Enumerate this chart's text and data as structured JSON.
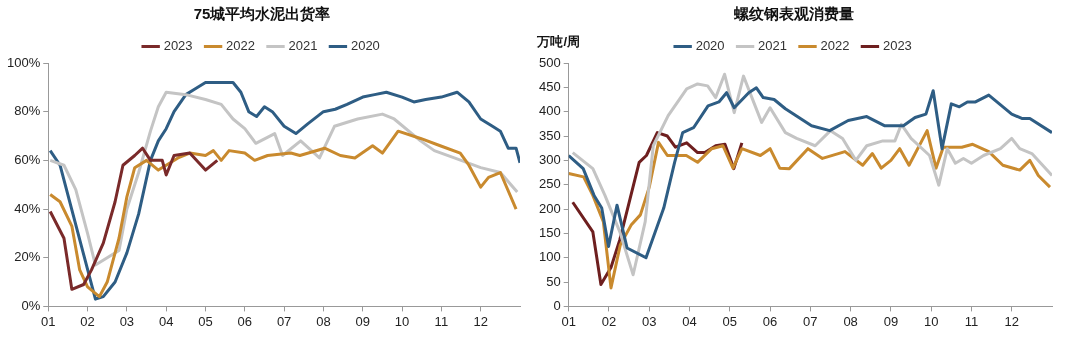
{
  "chart_data": [
    {
      "type": "line",
      "title": "75城平均水泥出货率",
      "legend": "top",
      "marker": "none",
      "xlim": [
        1,
        13
      ],
      "xticks": [
        {
          "value": 1,
          "label": "01"
        },
        {
          "value": 2,
          "label": "02"
        },
        {
          "value": 3,
          "label": "03"
        },
        {
          "value": 4,
          "label": "04"
        },
        {
          "value": 5,
          "label": "05"
        },
        {
          "value": 6,
          "label": "06"
        },
        {
          "value": 7,
          "label": "07"
        },
        {
          "value": 8,
          "label": "08"
        },
        {
          "value": 9,
          "label": "09"
        },
        {
          "value": 10,
          "label": "10"
        },
        {
          "value": 11,
          "label": "11"
        },
        {
          "value": 12,
          "label": "12"
        }
      ],
      "ylim": [
        0,
        100
      ],
      "yticks": [
        {
          "value": 0,
          "label": "0%"
        },
        {
          "value": 20,
          "label": "20%"
        },
        {
          "value": 40,
          "label": "40%"
        },
        {
          "value": 60,
          "label": "60%"
        },
        {
          "value": 80,
          "label": "80%"
        },
        {
          "value": 100,
          "label": "100%"
        }
      ],
      "series": [
        {
          "name": "2023",
          "color": "#7a2a2a",
          "x": [
            1.05,
            1.4,
            1.6,
            1.9,
            2.1,
            2.4,
            2.7,
            2.9,
            3.2,
            3.4,
            3.6,
            3.9,
            4.0,
            4.2,
            4.6,
            5.0,
            5.3
          ],
          "values": [
            39,
            28,
            7,
            9,
            15,
            26,
            43,
            58,
            62,
            65,
            60,
            60,
            54,
            62,
            63,
            56,
            60
          ]
        },
        {
          "name": "2022",
          "color": "#c98a2e",
          "x": [
            1.05,
            1.3,
            1.6,
            1.8,
            2.0,
            2.3,
            2.5,
            2.8,
            3.0,
            3.2,
            3.5,
            3.8,
            4.0,
            4.3,
            4.6,
            5.0,
            5.2,
            5.4,
            5.6,
            6.0,
            6.25,
            6.58,
            7.17,
            7.4,
            8.03,
            8.43,
            8.8,
            9.25,
            9.5,
            9.9,
            10.47,
            10.97,
            11.48,
            11.7,
            12.0,
            12.2,
            12.5,
            12.9
          ],
          "values": [
            46,
            43,
            33,
            15,
            8,
            4,
            10,
            28,
            45,
            57,
            60,
            56,
            58,
            61,
            63,
            62,
            64,
            60,
            64,
            63,
            60,
            62,
            63,
            62,
            65,
            62,
            61,
            66,
            63,
            72,
            69,
            66,
            63,
            58,
            49,
            53,
            55,
            40
          ]
        },
        {
          "name": "2021",
          "color": "#c4c4c4",
          "x": [
            1.05,
            1.4,
            1.7,
            2.0,
            2.2,
            2.5,
            2.8,
            3.0,
            3.3,
            3.6,
            3.8,
            4.0,
            4.5,
            5.0,
            5.4,
            5.7,
            6.0,
            6.28,
            6.76,
            6.96,
            7.42,
            7.9,
            8.28,
            8.87,
            9.5,
            9.8,
            10.47,
            10.82,
            11.33,
            12.0,
            12.5,
            12.93
          ],
          "values": [
            60,
            58,
            48,
            30,
            17,
            20,
            23,
            40,
            55,
            72,
            82,
            88,
            87,
            85,
            83,
            77,
            73,
            67,
            71,
            62,
            68,
            61,
            74,
            77,
            79,
            77,
            68,
            64,
            61,
            57,
            55,
            47
          ]
        },
        {
          "name": "2020",
          "color": "#2e5d84",
          "x": [
            1.05,
            1.3,
            2.2,
            2.4,
            2.7,
            3.0,
            3.3,
            3.6,
            3.8,
            4.0,
            4.2,
            4.5,
            4.7,
            5.0,
            5.5,
            5.7,
            5.9,
            6.1,
            6.3,
            6.5,
            6.7,
            7.0,
            7.3,
            7.6,
            8.0,
            8.3,
            8.6,
            9.0,
            9.3,
            9.6,
            10.0,
            10.3,
            10.6,
            11.0,
            11.4,
            11.7,
            12.0,
            12.3,
            12.5,
            12.7,
            12.9,
            13.0
          ],
          "values": [
            64,
            58,
            3,
            4,
            10,
            22,
            38,
            60,
            68,
            73,
            80,
            87,
            89,
            92,
            92,
            92,
            88,
            80,
            78,
            82,
            80,
            74,
            71,
            75,
            80,
            81,
            83,
            86,
            87,
            88,
            86,
            84,
            85,
            86,
            88,
            84,
            77,
            74,
            72,
            65,
            65,
            59
          ]
        }
      ]
    },
    {
      "type": "line",
      "title": "螺纹钢表观消费量",
      "ylabel": "万吨/周",
      "legend": "top",
      "marker": "none",
      "xlim": [
        1,
        13
      ],
      "xticks": [
        {
          "value": 1,
          "label": "01"
        },
        {
          "value": 2,
          "label": "02"
        },
        {
          "value": 3,
          "label": "03"
        },
        {
          "value": 4,
          "label": "04"
        },
        {
          "value": 5,
          "label": "05"
        },
        {
          "value": 6,
          "label": "06"
        },
        {
          "value": 7,
          "label": "07"
        },
        {
          "value": 8,
          "label": "08"
        },
        {
          "value": 9,
          "label": "09"
        },
        {
          "value": 10,
          "label": "10"
        },
        {
          "value": 11,
          "label": "11"
        },
        {
          "value": 12,
          "label": "12"
        }
      ],
      "ylim": [
        0,
        500
      ],
      "yticks": [
        0,
        50,
        100,
        150,
        200,
        250,
        300,
        350,
        400,
        450,
        500
      ],
      "series": [
        {
          "name": "2020",
          "color": "#2e5d84",
          "x": [
            1.0,
            1.36,
            1.63,
            1.82,
            1.99,
            2.2,
            2.45,
            2.92,
            3.36,
            3.63,
            3.83,
            4.1,
            4.46,
            4.73,
            4.92,
            5.11,
            5.47,
            5.66,
            5.83,
            6.1,
            6.38,
            7.03,
            7.48,
            7.94,
            8.4,
            8.85,
            9.31,
            9.6,
            9.87,
            10.05,
            10.27,
            10.5,
            10.7,
            10.9,
            11.1,
            11.43,
            12.0,
            12.25,
            12.45,
            13.0
          ],
          "values": [
            310,
            283,
            228,
            202,
            123,
            208,
            120,
            100,
            202,
            296,
            357,
            367,
            412,
            420,
            439,
            408,
            439,
            449,
            429,
            425,
            406,
            371,
            361,
            382,
            390,
            371,
            371,
            388,
            395,
            443,
            324,
            416,
            410,
            420,
            420,
            434,
            395,
            386,
            386,
            357
          ]
        },
        {
          "name": "2021",
          "color": "#c4c4c4",
          "x": [
            1.1,
            1.6,
            1.9,
            2.27,
            2.6,
            2.9,
            3.1,
            3.47,
            3.93,
            4.2,
            4.45,
            4.65,
            4.87,
            5.11,
            5.34,
            5.79,
            6.0,
            6.38,
            6.66,
            7.12,
            7.5,
            7.8,
            8.13,
            8.4,
            8.8,
            9.1,
            9.26,
            9.5,
            9.96,
            10.19,
            10.4,
            10.6,
            10.8,
            11.0,
            11.3,
            11.72,
            12.0,
            12.2,
            12.5,
            13.0
          ],
          "values": [
            316,
            283,
            228,
            153,
            65,
            174,
            330,
            392,
            447,
            457,
            453,
            429,
            477,
            398,
            473,
            378,
            408,
            357,
            345,
            330,
            361,
            345,
            300,
            330,
            340,
            340,
            374,
            345,
            310,
            249,
            324,
            294,
            304,
            294,
            310,
            324,
            345,
            324,
            314,
            269
          ]
        },
        {
          "name": "2022",
          "color": "#c98a2e",
          "x": [
            1.0,
            1.37,
            1.6,
            1.86,
            2.05,
            2.28,
            2.55,
            2.78,
            3.0,
            3.23,
            3.45,
            3.92,
            4.2,
            4.55,
            4.83,
            5.08,
            5.3,
            5.76,
            6.0,
            6.24,
            6.48,
            6.94,
            7.3,
            7.86,
            8.3,
            8.54,
            8.76,
            9.0,
            9.22,
            9.45,
            9.9,
            10.12,
            10.3,
            10.76,
            11.03,
            11.43,
            11.78,
            12.2,
            12.45,
            12.66,
            12.95
          ],
          "values": [
            273,
            266,
            228,
            174,
            38,
            126,
            167,
            188,
            245,
            337,
            310,
            310,
            296,
            324,
            330,
            284,
            324,
            310,
            324,
            284,
            283,
            324,
            304,
            318,
            290,
            314,
            284,
            300,
            324,
            290,
            361,
            284,
            327,
            327,
            333,
            318,
            290,
            280,
            300,
            269,
            245
          ]
        },
        {
          "name": "2023",
          "color": "#6e1f1f",
          "x": [
            1.1,
            1.6,
            1.8,
            2.05,
            2.27,
            2.75,
            2.93,
            3.2,
            3.45,
            3.65,
            3.93,
            4.2,
            4.38,
            4.65,
            4.88,
            5.1,
            5.3
          ],
          "values": [
            214,
            153,
            45,
            80,
            137,
            296,
            310,
            357,
            350,
            327,
            336,
            316,
            316,
            330,
            333,
            283,
            336
          ]
        }
      ]
    }
  ]
}
